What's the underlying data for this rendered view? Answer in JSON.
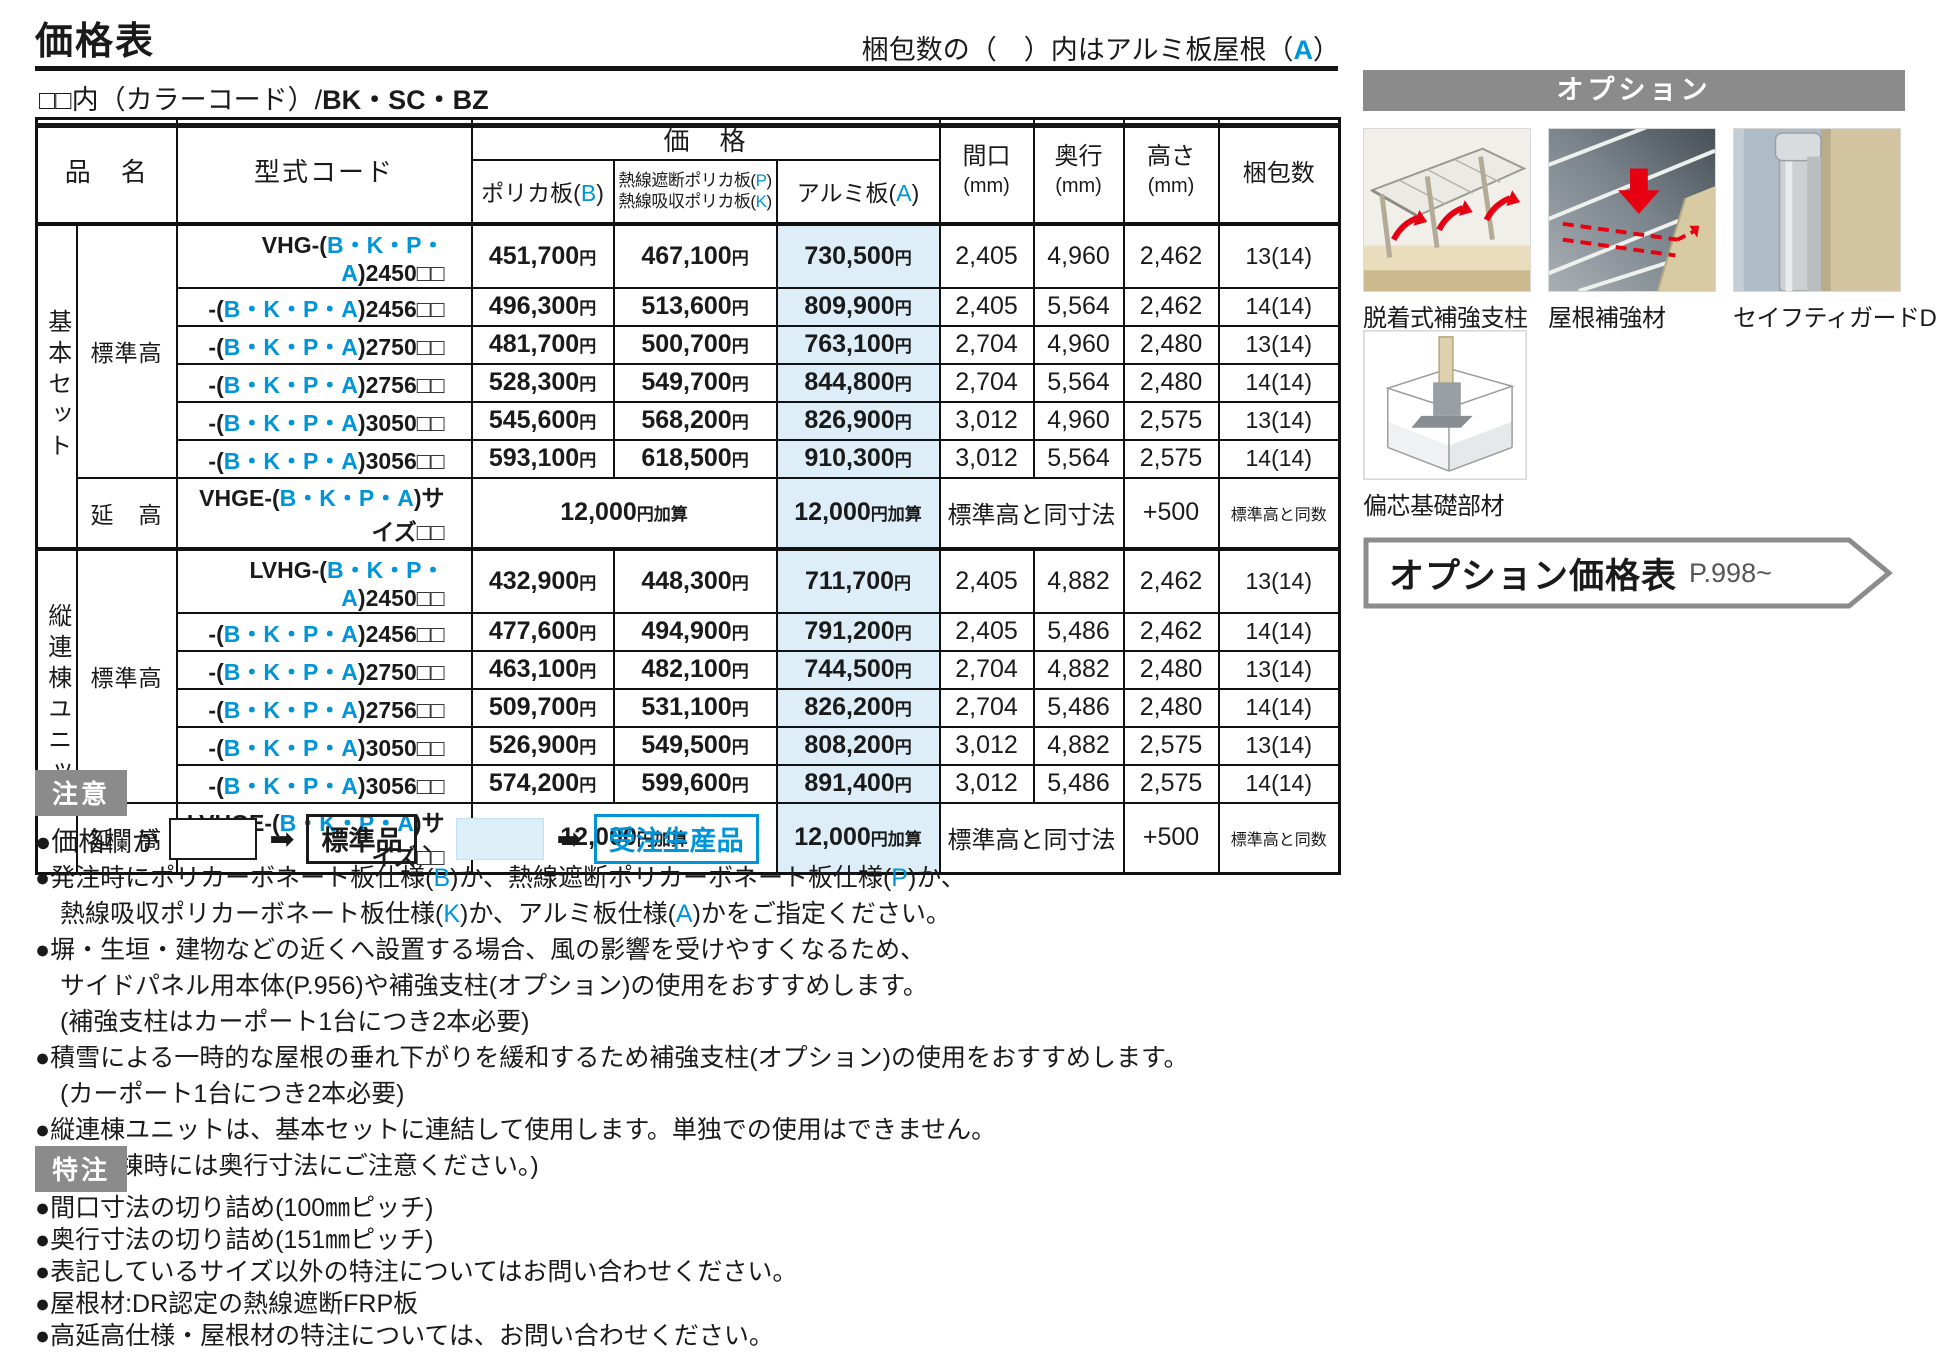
{
  "page": {
    "title": "価格表",
    "top_note": {
      "pre": "梱包数の（　）内はアルミ板屋根（",
      "letter": "A",
      "suf": "）"
    },
    "subtitle": {
      "boxes": "□□",
      "pre": "内（カラーコード）/",
      "bold": "BK・SC・BZ"
    }
  },
  "table": {
    "currency": "円",
    "header": {
      "product": "品　名",
      "code": "型式コード",
      "price_group": "価　格",
      "col_b": {
        "pre": "ポリカ板(",
        "letter": "B",
        "suf": ")"
      },
      "col_pk": [
        {
          "pre": "熱線遮断ポリカ板(",
          "letter": "P",
          "suf": ")"
        },
        {
          "pre": "熱線吸収ポリカ板(",
          "letter": "K",
          "suf": ")"
        }
      ],
      "col_a": {
        "pre": "アルミ板(",
        "letter": "A",
        "suf": ")"
      },
      "width": [
        "間口",
        "(mm)"
      ],
      "depth": [
        "奥行",
        "(mm)"
      ],
      "height": [
        "高さ",
        "(mm)"
      ],
      "packing": "梱包数"
    },
    "sections": [
      {
        "name": "基本セット",
        "sub_standard": "標準高",
        "sub_ext": "延　高",
        "rows": [
          {
            "code_pre": "VHG-(",
            "code_letters": "B・K・P・A",
            "code_suf": ")2450□□",
            "price_b": "451,700",
            "price_pk": "467,100",
            "price_a": "730,500",
            "w": "2,405",
            "d": "4,960",
            "h": "2,462",
            "pack": "13(14)"
          },
          {
            "code_pre": "-(",
            "code_letters": "B・K・P・A",
            "code_suf": ")2456□□",
            "price_b": "496,300",
            "price_pk": "513,600",
            "price_a": "809,900",
            "w": "2,405",
            "d": "5,564",
            "h": "2,462",
            "pack": "14(14)"
          },
          {
            "code_pre": "-(",
            "code_letters": "B・K・P・A",
            "code_suf": ")2750□□",
            "price_b": "481,700",
            "price_pk": "500,700",
            "price_a": "763,100",
            "w": "2,704",
            "d": "4,960",
            "h": "2,480",
            "pack": "13(14)"
          },
          {
            "code_pre": "-(",
            "code_letters": "B・K・P・A",
            "code_suf": ")2756□□",
            "price_b": "528,300",
            "price_pk": "549,700",
            "price_a": "844,800",
            "w": "2,704",
            "d": "5,564",
            "h": "2,480",
            "pack": "14(14)"
          },
          {
            "code_pre": "-(",
            "code_letters": "B・K・P・A",
            "code_suf": ")3050□□",
            "price_b": "545,600",
            "price_pk": "568,200",
            "price_a": "826,900",
            "w": "3,012",
            "d": "4,960",
            "h": "2,575",
            "pack": "13(14)"
          },
          {
            "code_pre": "-(",
            "code_letters": "B・K・P・A",
            "code_suf": ")3056□□",
            "price_b": "593,100",
            "price_pk": "618,500",
            "price_a": "910,300",
            "w": "3,012",
            "d": "5,564",
            "h": "2,575",
            "pack": "14(14)"
          }
        ],
        "ext_row": {
          "code_pre": "VHGE-(",
          "code_letters": "B・K・P・A",
          "code_suf": ")サイズ□□",
          "add_num": "12,000",
          "add_unit": "円加算",
          "dims": "標準高と同寸法",
          "h": "+500",
          "pack": "標準高と同数"
        }
      },
      {
        "name": "縦連棟ユニット",
        "sub_standard": "標準高",
        "sub_ext": "延　高",
        "rows": [
          {
            "code_pre": "LVHG-(",
            "code_letters": "B・K・P・A",
            "code_suf": ")2450□□",
            "price_b": "432,900",
            "price_pk": "448,300",
            "price_a": "711,700",
            "w": "2,405",
            "d": "4,882",
            "h": "2,462",
            "pack": "13(14)"
          },
          {
            "code_pre": "-(",
            "code_letters": "B・K・P・A",
            "code_suf": ")2456□□",
            "price_b": "477,600",
            "price_pk": "494,900",
            "price_a": "791,200",
            "w": "2,405",
            "d": "5,486",
            "h": "2,462",
            "pack": "14(14)"
          },
          {
            "code_pre": "-(",
            "code_letters": "B・K・P・A",
            "code_suf": ")2750□□",
            "price_b": "463,100",
            "price_pk": "482,100",
            "price_a": "744,500",
            "w": "2,704",
            "d": "4,882",
            "h": "2,480",
            "pack": "13(14)"
          },
          {
            "code_pre": "-(",
            "code_letters": "B・K・P・A",
            "code_suf": ")2756□□",
            "price_b": "509,700",
            "price_pk": "531,100",
            "price_a": "826,200",
            "w": "2,704",
            "d": "5,486",
            "h": "2,480",
            "pack": "14(14)"
          },
          {
            "code_pre": "-(",
            "code_letters": "B・K・P・A",
            "code_suf": ")3050□□",
            "price_b": "526,900",
            "price_pk": "549,500",
            "price_a": "808,200",
            "w": "3,012",
            "d": "4,882",
            "h": "2,575",
            "pack": "13(14)"
          },
          {
            "code_pre": "-(",
            "code_letters": "B・K・P・A",
            "code_suf": ")3056□□",
            "price_b": "574,200",
            "price_pk": "599,600",
            "price_a": "891,400",
            "w": "3,012",
            "d": "5,486",
            "h": "2,575",
            "pack": "14(14)"
          }
        ],
        "ext_row": {
          "code_pre": "LVHGE-(",
          "code_letters": "B・K・P・A",
          "code_suf": ")サイズ□□",
          "add_num": "12,000",
          "add_unit": "円加算",
          "dims": "標準高と同寸法",
          "h": "+500",
          "pack": "標準高と同数"
        }
      }
    ]
  },
  "notice": {
    "badge": "注意",
    "legend": {
      "pre": "●価格欄が",
      "arrow": "➡",
      "std_label": "標準品",
      "comma": "、",
      "mto_label": "受注生産品"
    },
    "lines": [
      [
        {
          "t": "●発注時にポリカーボネート板仕様("
        },
        {
          "t": "B",
          "b": 1
        },
        {
          "t": ")か、熱線遮断ポリカーボネート板仕様("
        },
        {
          "t": "P",
          "b": 1
        },
        {
          "t": ")か、"
        }
      ],
      [
        {
          "t": "　熱線吸収ポリカーボネート板仕様("
        },
        {
          "t": "K",
          "b": 1
        },
        {
          "t": ")か、アルミ板仕様("
        },
        {
          "t": "A",
          "b": 1
        },
        {
          "t": ")かをご指定ください。"
        }
      ],
      [
        {
          "t": "●塀・生垣・建物などの近くへ設置する場合、風の影響を受けやすくなるため、"
        }
      ],
      [
        {
          "t": "　サイドパネル用本体(P.956)や補強支柱(オプション)の使用をおすすめします。"
        }
      ],
      [
        {
          "t": "　(補強支柱はカーポート1台につき2本必要)"
        }
      ],
      [
        {
          "t": "●積雪による一時的な屋根の垂れ下がりを緩和するため補強支柱(オプション)の使用をおすすめします。"
        }
      ],
      [
        {
          "t": "　(カーポート1台につき2本必要)"
        }
      ],
      [
        {
          "t": "●縦連棟ユニットは、基本セットに連結して使用します。単独での使用はできません。"
        }
      ],
      [
        {
          "t": "　(縦連棟時には奥行寸法にご注意ください。)"
        }
      ]
    ]
  },
  "custom": {
    "badge": "特注",
    "lines": [
      "●間口寸法の切り詰め(100㎜ピッチ)",
      "●奥行寸法の切り詰め(151㎜ピッチ)",
      "●表記しているサイズ以外の特注についてはお問い合わせください。",
      "●屋根材:DR認定の熱線遮断FRP板",
      "●高延高仕様・屋根材の特注については、お問い合わせください。"
    ]
  },
  "options": {
    "header": "オプション",
    "items": [
      {
        "label": "脱着式補強支柱"
      },
      {
        "label": "屋根補強材"
      },
      {
        "label": "セイフティガードD"
      }
    ],
    "extra_label": "偏芯基礎部材",
    "banner": {
      "title": "オプション価格表",
      "page": "P.998~"
    }
  }
}
